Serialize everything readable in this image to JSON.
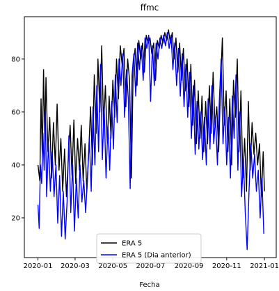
{
  "chart_data": {
    "type": "line",
    "title": "ffmc",
    "xlabel": "Fecha",
    "ylabel": "",
    "x_range": [
      "2019-12-10",
      "2021-01-20"
    ],
    "ylim": [
      5,
      96
    ],
    "grid": false,
    "legend_position": "lower-center",
    "x_tick_labels": [
      "2020-01",
      "2020-03",
      "2020-05",
      "2020-07",
      "2020-09",
      "2020-11",
      "2021-01"
    ],
    "x_ticks": [
      "2020-01-01",
      "2020-03-01",
      "2020-05-01",
      "2020-07-01",
      "2020-09-01",
      "2020-11-01",
      "2021-01-01"
    ],
    "y_ticks": [
      20,
      40,
      60,
      80
    ],
    "series": [
      {
        "name": "ERA 5",
        "color": "#000000",
        "points": [
          [
            "2020-01-01",
            40
          ],
          [
            "2020-01-04",
            34
          ],
          [
            "2020-01-06",
            65
          ],
          [
            "2020-01-08",
            43
          ],
          [
            "2020-01-10",
            76
          ],
          [
            "2020-01-12",
            50
          ],
          [
            "2020-01-14",
            73
          ],
          [
            "2020-01-17",
            45
          ],
          [
            "2020-01-20",
            58
          ],
          [
            "2020-01-23",
            35
          ],
          [
            "2020-01-26",
            56
          ],
          [
            "2020-01-29",
            40
          ],
          [
            "2020-02-01",
            63
          ],
          [
            "2020-02-04",
            38
          ],
          [
            "2020-02-07",
            50
          ],
          [
            "2020-02-10",
            30
          ],
          [
            "2020-02-13",
            46
          ],
          [
            "2020-02-16",
            28
          ],
          [
            "2020-02-19",
            42
          ],
          [
            "2020-02-22",
            55
          ],
          [
            "2020-02-25",
            36
          ],
          [
            "2020-02-28",
            57
          ],
          [
            "2020-03-02",
            33
          ],
          [
            "2020-03-05",
            50
          ],
          [
            "2020-03-08",
            38
          ],
          [
            "2020-03-11",
            55
          ],
          [
            "2020-03-14",
            34
          ],
          [
            "2020-03-17",
            48
          ],
          [
            "2020-03-20",
            30
          ],
          [
            "2020-03-23",
            45
          ],
          [
            "2020-03-26",
            62
          ],
          [
            "2020-03-29",
            40
          ],
          [
            "2020-04-01",
            74
          ],
          [
            "2020-04-04",
            52
          ],
          [
            "2020-04-07",
            80
          ],
          [
            "2020-04-10",
            60
          ],
          [
            "2020-04-13",
            85
          ],
          [
            "2020-04-16",
            55
          ],
          [
            "2020-04-19",
            70
          ],
          [
            "2020-04-22",
            48
          ],
          [
            "2020-04-25",
            66
          ],
          [
            "2020-04-28",
            50
          ],
          [
            "2020-05-01",
            72
          ],
          [
            "2020-05-04",
            58
          ],
          [
            "2020-05-07",
            80
          ],
          [
            "2020-05-10",
            65
          ],
          [
            "2020-05-13",
            85
          ],
          [
            "2020-05-16",
            78
          ],
          [
            "2020-05-19",
            84
          ],
          [
            "2020-05-22",
            62
          ],
          [
            "2020-05-25",
            80
          ],
          [
            "2020-05-28",
            72
          ],
          [
            "2020-05-31",
            35
          ],
          [
            "2020-06-03",
            78
          ],
          [
            "2020-06-06",
            84
          ],
          [
            "2020-06-09",
            70
          ],
          [
            "2020-06-12",
            87
          ],
          [
            "2020-06-15",
            80
          ],
          [
            "2020-06-18",
            86
          ],
          [
            "2020-06-21",
            75
          ],
          [
            "2020-06-24",
            89
          ],
          [
            "2020-06-27",
            86
          ],
          [
            "2020-06-30",
            88
          ],
          [
            "2020-07-03",
            82
          ],
          [
            "2020-07-06",
            86
          ],
          [
            "2020-07-09",
            72
          ],
          [
            "2020-07-12",
            87
          ],
          [
            "2020-07-15",
            84
          ],
          [
            "2020-07-18",
            89
          ],
          [
            "2020-07-21",
            86
          ],
          [
            "2020-07-24",
            90
          ],
          [
            "2020-07-27",
            87
          ],
          [
            "2020-07-30",
            91
          ],
          [
            "2020-08-02",
            86
          ],
          [
            "2020-08-05",
            90
          ],
          [
            "2020-08-08",
            80
          ],
          [
            "2020-08-11",
            88
          ],
          [
            "2020-08-14",
            75
          ],
          [
            "2020-08-17",
            86
          ],
          [
            "2020-08-20",
            72
          ],
          [
            "2020-08-23",
            84
          ],
          [
            "2020-08-26",
            68
          ],
          [
            "2020-08-29",
            80
          ],
          [
            "2020-09-01",
            62
          ],
          [
            "2020-09-04",
            78
          ],
          [
            "2020-09-07",
            55
          ],
          [
            "2020-09-10",
            72
          ],
          [
            "2020-09-13",
            48
          ],
          [
            "2020-09-16",
            68
          ],
          [
            "2020-09-19",
            50
          ],
          [
            "2020-09-22",
            66
          ],
          [
            "2020-09-25",
            45
          ],
          [
            "2020-09-28",
            64
          ],
          [
            "2020-10-01",
            48
          ],
          [
            "2020-10-04",
            70
          ],
          [
            "2020-10-07",
            52
          ],
          [
            "2020-10-10",
            75
          ],
          [
            "2020-10-13",
            55
          ],
          [
            "2020-10-16",
            62
          ],
          [
            "2020-10-19",
            45
          ],
          [
            "2020-10-22",
            70
          ],
          [
            "2020-10-25",
            88
          ],
          [
            "2020-10-28",
            55
          ],
          [
            "2020-10-31",
            68
          ],
          [
            "2020-11-03",
            45
          ],
          [
            "2020-11-06",
            65
          ],
          [
            "2020-11-09",
            40
          ],
          [
            "2020-11-12",
            72
          ],
          [
            "2020-11-15",
            58
          ],
          [
            "2020-11-18",
            80
          ],
          [
            "2020-11-21",
            45
          ],
          [
            "2020-11-24",
            68
          ],
          [
            "2020-11-27",
            35
          ],
          [
            "2020-11-30",
            50
          ],
          [
            "2020-12-03",
            30
          ],
          [
            "2020-12-06",
            64
          ],
          [
            "2020-12-09",
            38
          ],
          [
            "2020-12-12",
            56
          ],
          [
            "2020-12-15",
            44
          ],
          [
            "2020-12-18",
            52
          ],
          [
            "2020-12-21",
            40
          ],
          [
            "2020-12-24",
            48
          ],
          [
            "2020-12-27",
            28
          ],
          [
            "2020-12-30",
            45
          ],
          [
            "2021-01-01",
            30
          ]
        ]
      },
      {
        "name": "ERA 5 (Dia anterior)",
        "color": "#0000ff",
        "points": [
          [
            "2020-01-01",
            25
          ],
          [
            "2020-01-03",
            16
          ],
          [
            "2020-01-05",
            40
          ],
          [
            "2020-01-07",
            33
          ],
          [
            "2020-01-09",
            52
          ],
          [
            "2020-01-11",
            38
          ],
          [
            "2020-01-13",
            60
          ],
          [
            "2020-01-15",
            28
          ],
          [
            "2020-01-18",
            48
          ],
          [
            "2020-01-21",
            30
          ],
          [
            "2020-01-24",
            45
          ],
          [
            "2020-01-27",
            28
          ],
          [
            "2020-01-30",
            40
          ],
          [
            "2020-02-02",
            18
          ],
          [
            "2020-02-05",
            36
          ],
          [
            "2020-02-08",
            13
          ],
          [
            "2020-02-11",
            30
          ],
          [
            "2020-02-14",
            12
          ],
          [
            "2020-02-17",
            26
          ],
          [
            "2020-02-20",
            51
          ],
          [
            "2020-02-23",
            22
          ],
          [
            "2020-02-26",
            40
          ],
          [
            "2020-02-29",
            15
          ],
          [
            "2020-03-03",
            35
          ],
          [
            "2020-03-06",
            20
          ],
          [
            "2020-03-09",
            40
          ],
          [
            "2020-03-12",
            26
          ],
          [
            "2020-03-15",
            34
          ],
          [
            "2020-03-18",
            22
          ],
          [
            "2020-03-21",
            35
          ],
          [
            "2020-03-24",
            50
          ],
          [
            "2020-03-27",
            30
          ],
          [
            "2020-03-30",
            62
          ],
          [
            "2020-04-02",
            40
          ],
          [
            "2020-04-05",
            70
          ],
          [
            "2020-04-08",
            45
          ],
          [
            "2020-04-11",
            78
          ],
          [
            "2020-04-14",
            42
          ],
          [
            "2020-04-17",
            62
          ],
          [
            "2020-04-20",
            35
          ],
          [
            "2020-04-23",
            55
          ],
          [
            "2020-04-26",
            38
          ],
          [
            "2020-04-29",
            64
          ],
          [
            "2020-05-02",
            46
          ],
          [
            "2020-05-05",
            74
          ],
          [
            "2020-05-08",
            56
          ],
          [
            "2020-05-11",
            80
          ],
          [
            "2020-05-14",
            70
          ],
          [
            "2020-05-17",
            82
          ],
          [
            "2020-05-20",
            58
          ],
          [
            "2020-05-23",
            76
          ],
          [
            "2020-05-26",
            65
          ],
          [
            "2020-05-29",
            31
          ],
          [
            "2020-06-01",
            74
          ],
          [
            "2020-06-04",
            82
          ],
          [
            "2020-06-07",
            66
          ],
          [
            "2020-06-10",
            86
          ],
          [
            "2020-06-13",
            76
          ],
          [
            "2020-06-16",
            85
          ],
          [
            "2020-06-19",
            72
          ],
          [
            "2020-06-22",
            88
          ],
          [
            "2020-06-25",
            84
          ],
          [
            "2020-06-28",
            89
          ],
          [
            "2020-07-01",
            64
          ],
          [
            "2020-07-04",
            85
          ],
          [
            "2020-07-07",
            70
          ],
          [
            "2020-07-10",
            86
          ],
          [
            "2020-07-13",
            80
          ],
          [
            "2020-07-16",
            88
          ],
          [
            "2020-07-19",
            84
          ],
          [
            "2020-07-22",
            89
          ],
          [
            "2020-07-25",
            85
          ],
          [
            "2020-07-28",
            90
          ],
          [
            "2020-07-31",
            84
          ],
          [
            "2020-08-03",
            89
          ],
          [
            "2020-08-06",
            76
          ],
          [
            "2020-08-09",
            86
          ],
          [
            "2020-08-12",
            70
          ],
          [
            "2020-08-15",
            84
          ],
          [
            "2020-08-18",
            66
          ],
          [
            "2020-08-21",
            82
          ],
          [
            "2020-08-24",
            62
          ],
          [
            "2020-08-27",
            78
          ],
          [
            "2020-08-30",
            58
          ],
          [
            "2020-09-02",
            75
          ],
          [
            "2020-09-05",
            50
          ],
          [
            "2020-09-08",
            70
          ],
          [
            "2020-09-11",
            44
          ],
          [
            "2020-09-14",
            64
          ],
          [
            "2020-09-17",
            46
          ],
          [
            "2020-09-20",
            60
          ],
          [
            "2020-09-23",
            42
          ],
          [
            "2020-09-26",
            58
          ],
          [
            "2020-09-29",
            40
          ],
          [
            "2020-10-02",
            65
          ],
          [
            "2020-10-05",
            46
          ],
          [
            "2020-10-08",
            70
          ],
          [
            "2020-10-11",
            48
          ],
          [
            "2020-10-14",
            58
          ],
          [
            "2020-10-17",
            40
          ],
          [
            "2020-10-20",
            64
          ],
          [
            "2020-10-23",
            80
          ],
          [
            "2020-10-26",
            48
          ],
          [
            "2020-10-29",
            62
          ],
          [
            "2020-11-01",
            40
          ],
          [
            "2020-11-04",
            58
          ],
          [
            "2020-11-07",
            35
          ],
          [
            "2020-11-10",
            66
          ],
          [
            "2020-11-13",
            50
          ],
          [
            "2020-11-16",
            74
          ],
          [
            "2020-11-19",
            38
          ],
          [
            "2020-11-22",
            60
          ],
          [
            "2020-11-25",
            28
          ],
          [
            "2020-11-28",
            42
          ],
          [
            "2020-12-01",
            22
          ],
          [
            "2020-12-04",
            8
          ],
          [
            "2020-12-07",
            30
          ],
          [
            "2020-12-10",
            48
          ],
          [
            "2020-12-13",
            35
          ],
          [
            "2020-12-16",
            44
          ],
          [
            "2020-12-19",
            30
          ],
          [
            "2020-12-22",
            38
          ],
          [
            "2020-12-25",
            20
          ],
          [
            "2020-12-28",
            35
          ],
          [
            "2020-12-31",
            14
          ]
        ]
      }
    ]
  }
}
